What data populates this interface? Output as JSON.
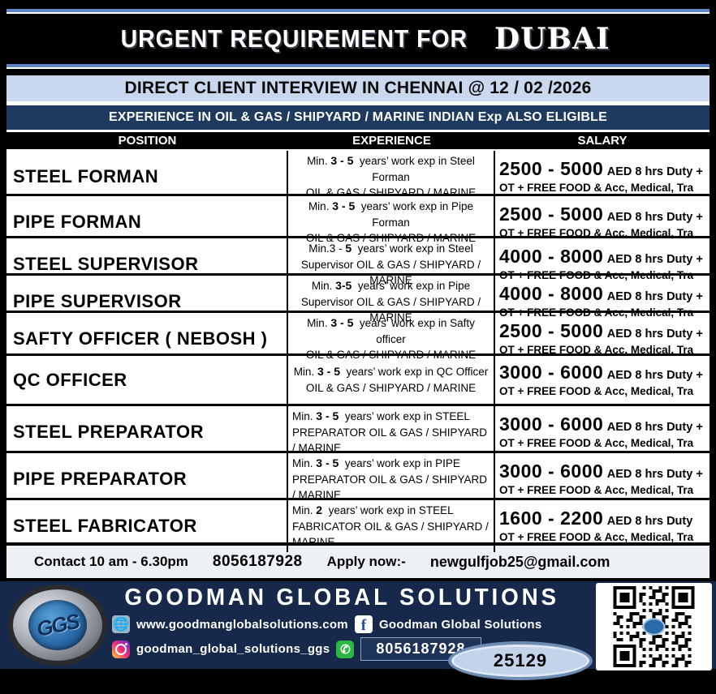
{
  "header": {
    "title_main": "URGENT REQUIREMENT  FOR",
    "title_accent": "DUBAI",
    "interview_banner": "DIRECT CLIENT INTERVIEW IN CHENNAI @ 12 / 02 /2026",
    "experience_banner": "EXPERIENCE IN OIL & GAS / SHIPYARD / MARINE INDIAN Exp ALSO ELIGIBLE"
  },
  "table": {
    "columns": [
      "POSITION",
      "EXPERIENCE",
      "SALARY"
    ],
    "rows": [
      {
        "position": "STEEL FORMAN",
        "exp_pre": "Min.",
        "exp_num": "3 - 5",
        "exp_rest": "years’  work exp in Steel Forman",
        "exp_line2": "OIL & GAS / SHIPYARD / MARINE",
        "exp_align": "center",
        "salary_range": "2500 - 5000",
        "salary_suffix": "AED 8 hrs Duty +",
        "salary_line2": "OT + FREE FOOD & Acc, Medical, Tra"
      },
      {
        "position": "PIPE FORMAN",
        "exp_pre": "Min.",
        "exp_num": "3 - 5",
        "exp_rest": "years’  work exp in Pipe Forman",
        "exp_line2": "OIL & GAS / SHIPYARD / MARINE",
        "exp_align": "center",
        "salary_range": "2500 - 5000",
        "salary_suffix": "AED 8 hrs Duty +",
        "salary_line2": "OT + FREE FOOD & Acc, Medical, Tra"
      },
      {
        "position": "STEEL SUPERVISOR",
        "exp_pre": "Min.3 -",
        "exp_num": "5",
        "exp_rest": "years’  work exp in Steel",
        "exp_line2": "Supervisor OIL & GAS / SHIPYARD / MARINE",
        "exp_align": "center",
        "salary_range": "4000 - 8000",
        "salary_suffix": "AED 8 hrs Duty +",
        "salary_line2": "OT + FREE FOOD & Acc, Medical, Tra"
      },
      {
        "position": "PIPE SUPERVISOR",
        "exp_pre": "Min.",
        "exp_num": "3-5",
        "exp_rest": "years’  work exp in Pipe",
        "exp_line2": "Supervisor OIL & GAS / SHIPYARD / MARINE",
        "exp_align": "center",
        "salary_range": "4000 - 8000",
        "salary_suffix": "AED 8 hrs Duty +",
        "salary_line2": "OT + FREE FOOD & Acc, Medical, Tra"
      },
      {
        "position": "SAFTY OFFICER ( NEBOSH )",
        "exp_pre": "Min.",
        "exp_num": "3 - 5",
        "exp_rest": "years’  work exp in Safty officer",
        "exp_line2": "OIL & GAS / SHIPYARD / MARINE",
        "exp_align": "center",
        "salary_range": "2500 - 5000",
        "salary_suffix": "AED 8 hrs Duty +",
        "salary_line2": "OT + FREE FOOD & Acc, Medical, Tra"
      },
      {
        "position": "QC OFFICER",
        "exp_pre": "Min.",
        "exp_num": "3 - 5",
        "exp_rest": "years’  work exp in QC Officer",
        "exp_line2": "OIL & GAS / SHIPYARD / MARINE",
        "exp_align": "center",
        "salary_range": "3000 - 6000",
        "salary_suffix": "AED  8 hrs Duty +",
        "salary_line2": "OT + FREE FOOD & Acc, Medical, Tra"
      },
      {
        "position": "STEEL PREPARATOR",
        "exp_pre": "Min.",
        "exp_num": "3 - 5",
        "exp_rest": "years’  work exp in STEEL",
        "exp_line2": "PREPARATOR  OIL & GAS / SHIPYARD / MARINE",
        "exp_align": "left",
        "salary_range": "3000 - 6000",
        "salary_suffix": "AED 8 hrs Duty +",
        "salary_line2": "OT + FREE FOOD & Acc, Medical, Tra"
      },
      {
        "position": "PIPE PREPARATOR",
        "exp_pre": "Min.",
        "exp_num": "3 - 5",
        "exp_rest": "years’  work exp in PIPE",
        "exp_line2": "PREPARATOR  OIL & GAS / SHIPYARD / MARINE",
        "exp_align": "left",
        "salary_range": "3000 - 6000",
        "salary_suffix": "AED 8 hrs Duty +",
        "salary_line2": "OT + FREE FOOD & Acc, Medical, Tra"
      },
      {
        "position": "STEEL FABRICATOR",
        "exp_pre": "Min.",
        "exp_num": "2",
        "exp_rest": "years’  work exp in STEEL",
        "exp_line2": "FABRICATOR  OIL & GAS / SHIPYARD / MARINE",
        "exp_align": "left",
        "salary_range": "1600 - 2200",
        "salary_suffix": "AED 8 hrs Duty",
        "salary_line2": "OT + FREE FOOD & Acc, Medical, Tra"
      }
    ]
  },
  "contact_bar": {
    "label": "Contact 10 am - 6.30pm",
    "phone": "8056187928",
    "apply_label": "Apply now:-",
    "email": "newgulfjob25@gmail.com"
  },
  "footer": {
    "company": "GOODMAN GLOBAL SOLUTIONS",
    "website": "www.goodmanglobalsolutions.com",
    "facebook": "Goodman Global Solutions",
    "instagram": "goodman_global_solutions_ggs",
    "whatsapp_phone": "8056187928",
    "badge": "25129",
    "logo_text": "GGS"
  },
  "icons": {
    "globe_glyph": "🌐",
    "facebook_glyph": "f",
    "whatsapp_glyph": "✆"
  },
  "colors": {
    "stripe_blue": "#5f87c5",
    "light_blue_band": "#c9d8ee",
    "navy_band": "#1e3a5e",
    "footer_navy": "#16294a",
    "contact_bg": "#edf1f5",
    "whatsapp_green": "#2bb741"
  }
}
